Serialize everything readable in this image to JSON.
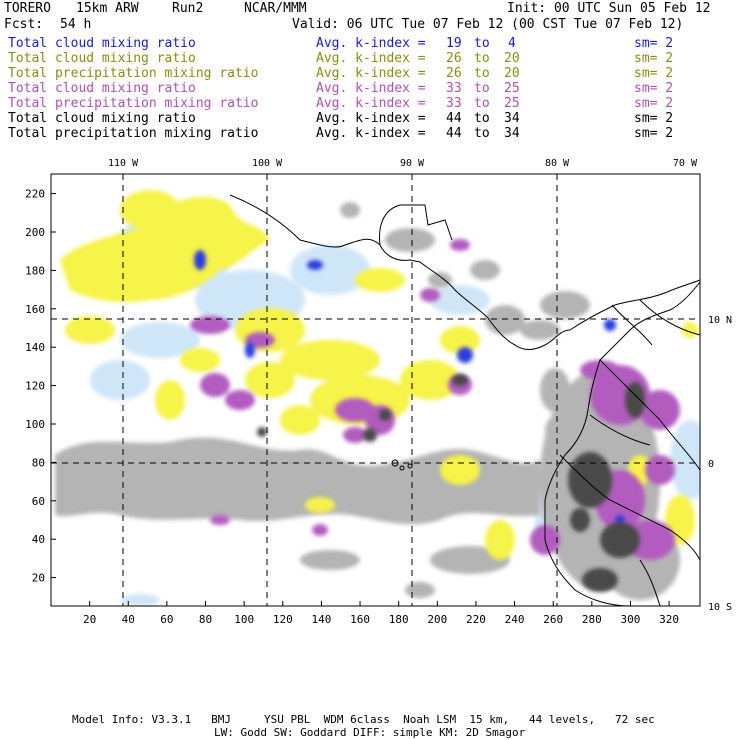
{
  "header": {
    "model": "TORERO",
    "resolution": "15km ARW",
    "run": "Run2",
    "org": "NCAR/MMM",
    "init": "Init: 00 UTC Sun 05 Feb 12",
    "fcst_label": "Fcst:",
    "fcst_value": "54 h",
    "valid": "Valid: 06 UTC Tue 07 Feb 12 (00 CST Tue 07 Feb 12)"
  },
  "legend": [
    {
      "field": "Total cloud mixing ratio",
      "kindex": "Avg. k-index =",
      "from": "19",
      "to_label": "to",
      "to": "4",
      "sm": "sm= 2",
      "color": "#1a1ad0"
    },
    {
      "field": "Total cloud mixing ratio",
      "kindex": "Avg. k-index =",
      "from": "26",
      "to_label": "to",
      "to": "20",
      "sm": "sm= 2",
      "color": "#8c8c14"
    },
    {
      "field": "Total precipitation mixing ratio",
      "kindex": "Avg. k-index =",
      "from": "26",
      "to_label": "to",
      "to": "20",
      "sm": "sm= 2",
      "color": "#8c8c14"
    },
    {
      "field": "Total cloud mixing ratio",
      "kindex": "Avg. k-index =",
      "from": "33",
      "to_label": "to",
      "to": "25",
      "sm": "sm= 2",
      "color": "#b050b8"
    },
    {
      "field": "Total precipitation mixing ratio",
      "kindex": "Avg. k-index =",
      "from": "33",
      "to_label": "to",
      "to": "25",
      "sm": "sm= 2",
      "color": "#b050b8"
    },
    {
      "field": "Total cloud mixing ratio",
      "kindex": "Avg. k-index =",
      "from": "44",
      "to_label": "to",
      "to": "34",
      "sm": "sm= 2",
      "color": "#000000"
    },
    {
      "field": "Total precipitation mixing ratio",
      "kindex": "Avg. k-index =",
      "from": "44",
      "to_label": "to",
      "to": "34",
      "sm": "sm= 2",
      "color": "#000000"
    }
  ],
  "map": {
    "top_lon_labels": [
      "110 W",
      "100 W",
      "90 W",
      "80 W",
      "70 W"
    ],
    "right_lat_labels": [
      "10 N",
      "0",
      "10 S"
    ],
    "x_ticks": [
      "20",
      "40",
      "60",
      "80",
      "100",
      "120",
      "140",
      "160",
      "180",
      "200",
      "220",
      "240",
      "260",
      "280",
      "300",
      "320"
    ],
    "y_ticks": [
      "220",
      "200",
      "180",
      "160",
      "140",
      "120",
      "100",
      "80",
      "60",
      "40",
      "20"
    ],
    "colors": {
      "light_blue": "#cfe6f8",
      "blue": "#2a3ee0",
      "yellow": "#f6f34a",
      "light_yellow": "#fbf7a0",
      "purple": "#b25cc0",
      "light_grey": "#b4b4b4",
      "dark_grey": "#4a4a4a"
    }
  },
  "footer": {
    "line1": "Model Info: V3.3.1   BMJ     YSU PBL  WDM 6class  Noah LSM  15 km,   44 levels,   72 sec",
    "line2": "LW: Godd SW: Goddard DIFF: simple KM: 2D Smagor"
  }
}
